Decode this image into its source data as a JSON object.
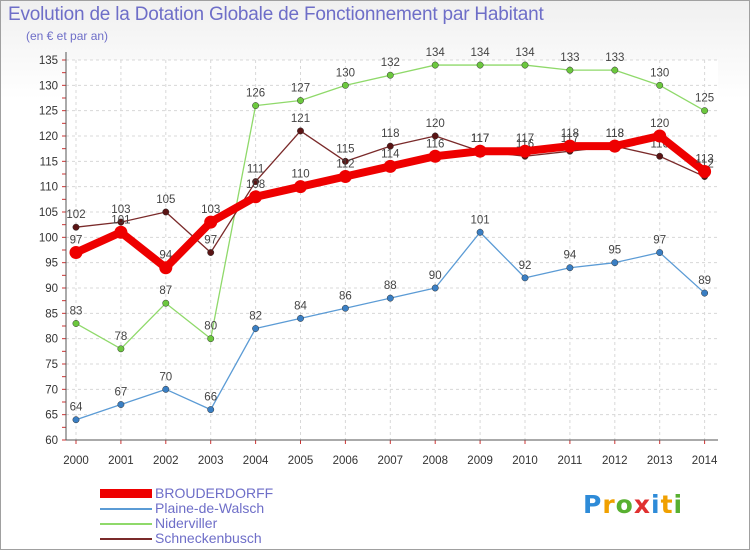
{
  "title": "Evolution de la Dotation Globale de Fonctionnement par Habitant",
  "subtitle": "(en € et par an)",
  "logo": {
    "text": "Proxiti",
    "letters": [
      "P",
      "r",
      "o",
      "x",
      "i",
      "t",
      "i"
    ],
    "colors": [
      "#2e8bd8",
      "#f0a000",
      "#58b030",
      "#e03030",
      "#2e8bd8",
      "#f0a000",
      "#58b030"
    ]
  },
  "chart_data": {
    "type": "line",
    "title": "Evolution de la Dotation Globale de Fonctionnement par Habitant",
    "subtitle": "(en € et par an)",
    "xlabel": "",
    "ylabel": "",
    "categories": [
      "2000",
      "2001",
      "2002",
      "2003",
      "2004",
      "2005",
      "2006",
      "2007",
      "2008",
      "2009",
      "2010",
      "2011",
      "2012",
      "2013",
      "2014"
    ],
    "ylim": [
      60,
      135
    ],
    "yticks": [
      60,
      65,
      70,
      75,
      80,
      85,
      90,
      95,
      100,
      105,
      110,
      115,
      120,
      125,
      130,
      135
    ],
    "grid": true,
    "legend_position": "bottom-left",
    "series": [
      {
        "name": "Plaine-de-Walsch",
        "color": "#5b9bd5",
        "marker": "#3a7fc4",
        "values": [
          64,
          67,
          70,
          66,
          82,
          84,
          86,
          88,
          90,
          101,
          92,
          94,
          95,
          97,
          89
        ]
      },
      {
        "name": "Niderviller",
        "color": "#8fd96a",
        "marker": "#6cc83e",
        "values": [
          83,
          78,
          87,
          80,
          126,
          127,
          130,
          132,
          134,
          134,
          134,
          133,
          133,
          130,
          125
        ]
      },
      {
        "name": "Schneckenbusch",
        "color": "#7a2a2a",
        "marker": "#5a1414",
        "values": [
          102,
          103,
          105,
          97,
          111,
          121,
          115,
          118,
          120,
          117,
          116,
          117,
          118,
          116,
          112
        ]
      },
      {
        "name": "BROUDERDORFF",
        "color": "#ee0000",
        "marker": "#ee0000",
        "values": [
          97,
          101,
          94,
          103,
          108,
          110,
          112,
          114,
          116,
          117,
          117,
          118,
          118,
          120,
          113
        ]
      }
    ],
    "legend": [
      "BROUDERDORFF",
      "Plaine-de-Walsch",
      "Niderviller",
      "Schneckenbusch"
    ]
  }
}
